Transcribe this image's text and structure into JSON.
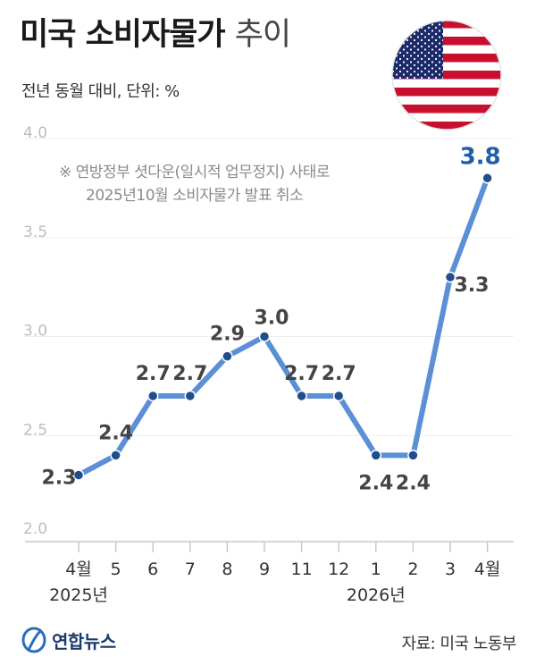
{
  "header": {
    "title_bold": "미국 소비자물가",
    "title_light": "추이",
    "subtitle": "전년 동월 대비, 단위: %"
  },
  "note": {
    "line1": "※ 연방정부 셧다운(일시적 업무정지) 사태로",
    "line2": "2025년10월 소비자물가 발표 취소"
  },
  "footer": {
    "logo_text": "연합뉴스",
    "source": "자료: 미국 노동부"
  },
  "colors": {
    "line": "#5b8fd6",
    "point": "#1f4e8c",
    "label": "#444444",
    "last_label": "#1f5fa8",
    "grid": "#c9c9c9",
    "tick_text": "#bdbdbd"
  },
  "chart_data": {
    "type": "line",
    "title": "미국 소비자물가 추이",
    "categories": [
      "4월",
      "5",
      "6",
      "7",
      "8",
      "9",
      "11",
      "12",
      "1",
      "2",
      "3",
      "4월"
    ],
    "year_labels": [
      "2025년",
      "2026년"
    ],
    "values": [
      2.3,
      2.4,
      2.7,
      2.7,
      2.9,
      3.0,
      2.7,
      2.7,
      2.4,
      2.4,
      3.3,
      3.8
    ],
    "value_labels": [
      "2.3",
      "2.4",
      "2.7",
      "2.7",
      "2.9",
      "3.0",
      "2.7",
      "2.7",
      "2.4",
      "2.4",
      "3.3",
      "3.8"
    ],
    "ylim": [
      2.0,
      4.0
    ],
    "y_ticks": [
      "2.0",
      "2.5",
      "3.0",
      "3.5",
      "4.0"
    ],
    "grid": true
  }
}
